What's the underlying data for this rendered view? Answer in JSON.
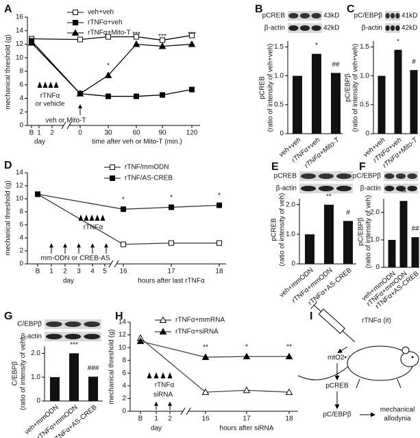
{
  "chart_data": [
    {
      "type": "line",
      "panel": "A",
      "ylabel": "mechanical threshold (g)",
      "ylim": [
        0,
        16
      ],
      "yticks": [
        0,
        2,
        4,
        6,
        8,
        10,
        12,
        14,
        16
      ],
      "categories": [
        "B",
        "0",
        "30",
        "60",
        "90",
        "120"
      ],
      "day_ticks": [
        "1",
        "2"
      ],
      "xlabels": [
        "day",
        "time after veh or Mito-T (min.)"
      ],
      "series": [
        {
          "name": "veh+veh",
          "color": "#000",
          "marker": "open-square",
          "values": [
            12.8,
            12.7,
            13.1,
            13.1,
            12.6,
            13.3
          ]
        },
        {
          "name": "rTNFα+veh",
          "color": "#000",
          "marker": "filled-square",
          "values": [
            12.5,
            4.7,
            4.3,
            4.3,
            4.5,
            5.3
          ]
        },
        {
          "name": "rTNFα+Mito-T",
          "color": "#000",
          "marker": "filled-triangle",
          "values": [
            12.2,
            4.7,
            7.4,
            12.0,
            11.7,
            12.0
          ],
          "significance": [
            null,
            null,
            "*",
            "***",
            "***",
            "***"
          ]
        }
      ],
      "annotations": [
        "rTNFα",
        "or vehicle",
        "veh or Mito-T"
      ]
    },
    {
      "type": "bar",
      "panel": "B",
      "blot": {
        "labels": [
          "pCREB",
          "β-actin"
        ],
        "sizes": [
          "43kD",
          "42kD"
        ]
      },
      "ylabel": [
        "pCREB",
        "(ratio of intensity of veh+veh)"
      ],
      "ylim": [
        0,
        1.6
      ],
      "yticks": [
        0,
        0.5,
        {
          "value": 1,
          "label": "1.0"
        },
        1.5
      ],
      "categories": [
        "veh+veh",
        "rTNFα+veh",
        "rTNFα+Mito-T"
      ],
      "values": [
        1.0,
        1.38,
        1.05
      ],
      "significance": [
        null,
        "*",
        "##"
      ],
      "color": "#111"
    },
    {
      "type": "bar",
      "panel": "C",
      "blot": {
        "labels": [
          "pC/EBPβ",
          "β-actin"
        ],
        "sizes": [
          "41kD",
          "42kD"
        ]
      },
      "ylabel": [
        "pC/EBPβ",
        "(ratio of intensity of veh+veh)"
      ],
      "ylim": [
        0,
        1.6
      ],
      "yticks": [
        0,
        0.5,
        {
          "value": 1,
          "label": "1.0"
        },
        1.5
      ],
      "categories": [
        "veh+veh",
        "rTNFα+veh",
        "rTNFα+Mito-T"
      ],
      "values": [
        1.0,
        1.45,
        1.1
      ],
      "significance": [
        null,
        "*",
        "#"
      ],
      "color": "#111"
    },
    {
      "type": "line",
      "panel": "D",
      "ylabel": "mechanical threshold (g)",
      "ylim": [
        0,
        14
      ],
      "yticks": [
        0,
        2,
        4,
        6,
        8,
        10,
        12,
        14
      ],
      "categories": [
        "B",
        "16",
        "17",
        "18"
      ],
      "day_ticks": [
        "1",
        "2",
        "3",
        "4",
        "5"
      ],
      "xlabels": [
        "day",
        "hours after last rTNFα"
      ],
      "series": [
        {
          "name": "rTNF/mmODN",
          "color": "#333",
          "marker": "open-square",
          "values": [
            10.7,
            3.0,
            3.2,
            3.2
          ]
        },
        {
          "name": "rTNF/AS-CREB",
          "color": "#333",
          "marker": "filled-square",
          "values": [
            10.7,
            8.4,
            8.7,
            9.0
          ],
          "significance": [
            null,
            "*",
            "*",
            "*"
          ]
        }
      ],
      "annotations": [
        "rTNFα",
        "mm-ODN or CREB-AS"
      ]
    },
    {
      "type": "bar",
      "panel": "E",
      "blot": {
        "labels": [
          "pCREB",
          "β-actin"
        ]
      },
      "ylabel": [
        "pCREB",
        "(ratio of intensity of veh)"
      ],
      "ylim": [
        0,
        2.2
      ],
      "yticks": [
        0,
        {
          "value": 1,
          "label": "1.0"
        },
        {
          "value": 2,
          "label": "2.0"
        }
      ],
      "categories": [
        "veh+mmODN",
        "rTNFα+mmODN",
        "rTNFα+AS-CREB"
      ],
      "values": [
        1.0,
        2.0,
        1.45
      ],
      "significance": [
        null,
        "**",
        "#"
      ],
      "color": "#111"
    },
    {
      "type": "bar",
      "panel": "F",
      "blot": {
        "labels": [
          "pC/EBPβ",
          "β-actin"
        ]
      },
      "ylabel": [
        "pC/EBPβ",
        "(ratio of intensity of veh)"
      ],
      "ylim": [
        0,
        2.5
      ],
      "yticks": [
        0,
        {
          "value": 1,
          "label": "1.0"
        },
        {
          "value": 2,
          "label": "2.0"
        }
      ],
      "categories": [
        "veh+mmODN",
        "rTNFα+mmODN",
        "rTNFα+AS-CREB"
      ],
      "values": [
        1.0,
        2.42,
        1.1
      ],
      "significance": [
        null,
        "**",
        "##"
      ],
      "color": "#111"
    },
    {
      "type": "bar",
      "panel": "G",
      "blot": {
        "labels": [
          "C/EBPβ",
          "β-actin"
        ]
      },
      "ylabel": [
        "C/EBPβ",
        "(ratio of intensity of veh)"
      ],
      "ylim": [
        0,
        2.3
      ],
      "yticks": [
        0,
        {
          "value": 1,
          "label": "1.0"
        },
        {
          "value": 2,
          "label": "2.0"
        }
      ],
      "categories": [
        "veh+mmODN",
        "rTNFα+mmODN",
        "rTNFα+AS-CREB"
      ],
      "values": [
        1.0,
        2.0,
        1.02
      ],
      "significance": [
        null,
        "***",
        "###"
      ],
      "color": "#111"
    },
    {
      "type": "line",
      "panel": "H",
      "ylabel": "mechanical threshold (g)",
      "ylim": [
        0,
        14
      ],
      "yticks": [
        0,
        2,
        4,
        6,
        8,
        10,
        12,
        14
      ],
      "categories": [
        "B",
        "16",
        "17",
        "18"
      ],
      "day_ticks": [
        "1",
        "2"
      ],
      "xlabels": [
        "day",
        "hours after siRNA"
      ],
      "series": [
        {
          "name": "rTNFα+mmRNA",
          "color": "#444",
          "marker": "open-triangle",
          "values": [
            11.5,
            3.0,
            3.3,
            3.0
          ]
        },
        {
          "name": "rTNFα+siRNA",
          "color": "#444",
          "marker": "filled-triangle",
          "values": [
            11.0,
            8.5,
            8.6,
            8.6
          ],
          "significance": [
            null,
            "**",
            "*",
            "**"
          ]
        }
      ],
      "annotations": [
        "rTNFα",
        "siRNA"
      ]
    }
  ],
  "diagram": {
    "panel": "I",
    "injection": "rTNFα (it)",
    "steps": [
      "mtO2•⁻",
      "pCREB",
      "pC/EBPβ"
    ],
    "outcome": [
      "mechanical",
      "allodynia"
    ]
  }
}
